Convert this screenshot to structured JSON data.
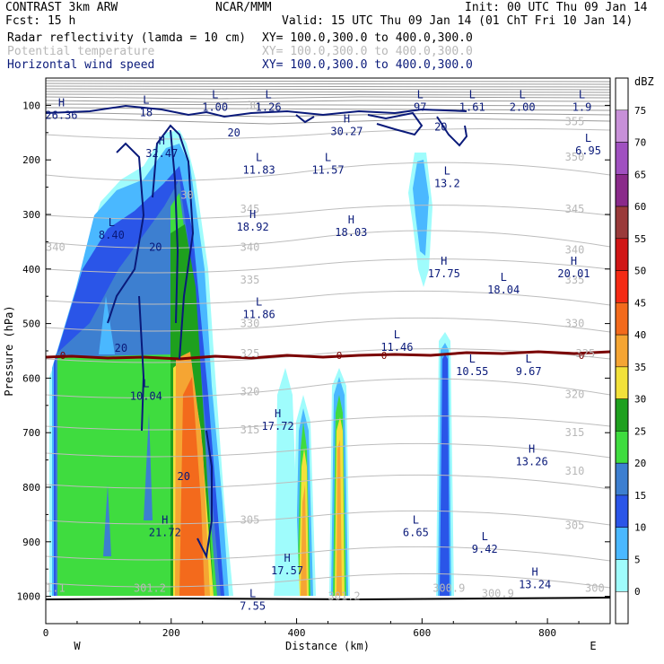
{
  "header": {
    "model": "CONTRAST  3km ARW",
    "org": "NCAR/MMM",
    "init": "Init: 00 UTC Thu 09 Jan 14",
    "fcst": "Fcst:   15 h",
    "valid": "Valid: 15 UTC Thu 09 Jan 14 (01 ChT Fri 10 Jan 14)",
    "fields": [
      {
        "label": "Radar reflectivity (lamda = 10 cm)",
        "xy": "XY= 100.0,300.0 to 400.0,300.0",
        "color": "#000000"
      },
      {
        "label": "Potential temperature",
        "xy": "XY= 100.0,300.0 to 400.0,300.0",
        "color": "#c0c0c0"
      },
      {
        "label": "Horizontal wind speed",
        "xy": "XY= 100.0,300.0 to 400.0,300.0",
        "color": "#0a1a7a"
      }
    ]
  },
  "chart_data": {
    "type": "heatmap",
    "title": "Radar reflectivity (lamda = 10 cm)",
    "xlabel": "Distance (km)",
    "ylabel": "Pressure (hPa)",
    "xlim": [
      0,
      900
    ],
    "ylim": [
      1050,
      50
    ],
    "x_ticks": [
      0,
      200,
      400,
      600,
      800
    ],
    "y_ticks": [
      100,
      200,
      300,
      400,
      500,
      600,
      700,
      800,
      900,
      1000
    ],
    "x_end_labels": {
      "left": "W",
      "right": "E"
    },
    "colorbar": {
      "unit": "dBZ",
      "levels": [
        0,
        5,
        10,
        15,
        20,
        25,
        30,
        35,
        40,
        45,
        50,
        55,
        60,
        65,
        70,
        75
      ],
      "colors": [
        "#ffffff",
        "#9ffcfc",
        "#4ab8ff",
        "#2a55e8",
        "#3d7fd0",
        "#3fdc3f",
        "#1ea01e",
        "#f2e13a",
        "#f5a533",
        "#f36a1c",
        "#f42a14",
        "#d01515",
        "#9a3a3a",
        "#8a2a8a",
        "#a050c0",
        "#c890d8"
      ]
    },
    "freezing_level": {
      "label": "0",
      "color": "#7a0000"
    },
    "theta_labels": [
      {
        "value": "355",
        "x": 828,
        "p": 130
      },
      {
        "value": "350",
        "x": 828,
        "p": 195
      },
      {
        "value": "345",
        "x": 310,
        "p": 290
      },
      {
        "value": "345",
        "x": 828,
        "p": 290
      },
      {
        "value": "340",
        "x": 0,
        "p": 360
      },
      {
        "value": "340",
        "x": 310,
        "p": 360
      },
      {
        "value": "340",
        "x": 828,
        "p": 365
      },
      {
        "value": "335",
        "x": 310,
        "p": 420
      },
      {
        "value": "335",
        "x": 828,
        "p": 420
      },
      {
        "value": "330",
        "x": 310,
        "p": 500
      },
      {
        "value": "330",
        "x": 828,
        "p": 500
      },
      {
        "value": "325",
        "x": 310,
        "p": 555
      },
      {
        "value": "325",
        "x": 845,
        "p": 555
      },
      {
        "value": "320",
        "x": 310,
        "p": 625
      },
      {
        "value": "320",
        "x": 828,
        "p": 630
      },
      {
        "value": "315",
        "x": 310,
        "p": 695
      },
      {
        "value": "315",
        "x": 828,
        "p": 700
      },
      {
        "value": "310",
        "x": 828,
        "p": 770
      },
      {
        "value": "305",
        "x": 310,
        "p": 860
      },
      {
        "value": "305",
        "x": 828,
        "p": 870
      },
      {
        "value": "301.2",
        "x": 140,
        "p": 985
      },
      {
        "value": "301.2",
        "x": 450,
        "p": 1000
      },
      {
        "value": "300.9",
        "x": 617,
        "p": 985
      },
      {
        "value": "300.9",
        "x": 695,
        "p": 995
      },
      {
        "value": "300",
        "x": 860,
        "p": 985
      },
      {
        "value": "1.1",
        "x": 0,
        "p": 985
      },
      {
        "value": "30",
        "x": 320,
        "p": 100
      },
      {
        "value": "30",
        "x": 215,
        "p": 265
      }
    ],
    "wind_contour_labels": [
      {
        "value": "20",
        "x": 300,
        "p": 150
      },
      {
        "value": "20",
        "x": 630,
        "p": 140
      },
      {
        "value": "20",
        "x": 175,
        "p": 360
      },
      {
        "value": "20",
        "x": 120,
        "p": 545
      },
      {
        "value": "20",
        "x": 220,
        "p": 780
      }
    ],
    "extrema": [
      {
        "type": "H",
        "value": "26.36",
        "x": 25,
        "p": 110
      },
      {
        "type": "L",
        "value": "18",
        "x": 160,
        "p": 105
      },
      {
        "type": "L",
        "value": "1.00",
        "x": 270,
        "p": 95
      },
      {
        "type": "L",
        "value": "1.26",
        "x": 355,
        "p": 95
      },
      {
        "type": "L",
        "value": "97",
        "x": 597,
        "p": 95
      },
      {
        "type": "L",
        "value": "1.61",
        "x": 680,
        "p": 95
      },
      {
        "type": "L",
        "value": "2.00",
        "x": 760,
        "p": 95
      },
      {
        "type": "L",
        "value": "1.9",
        "x": 855,
        "p": 95
      },
      {
        "type": "H",
        "value": "30.27",
        "x": 480,
        "p": 140
      },
      {
        "type": "H",
        "value": "32.47",
        "x": 185,
        "p": 180
      },
      {
        "type": "L",
        "value": "6.95",
        "x": 865,
        "p": 175
      },
      {
        "type": "L",
        "value": "11.83",
        "x": 340,
        "p": 210
      },
      {
        "type": "L",
        "value": "11.57",
        "x": 450,
        "p": 210
      },
      {
        "type": "L",
        "value": "13.2",
        "x": 640,
        "p": 235
      },
      {
        "type": "H",
        "value": "18.92",
        "x": 330,
        "p": 315
      },
      {
        "type": "H",
        "value": "18.03",
        "x": 487,
        "p": 325
      },
      {
        "type": "L",
        "value": "8.40",
        "x": 105,
        "p": 330
      },
      {
        "type": "H",
        "value": "17.75",
        "x": 635,
        "p": 400
      },
      {
        "type": "H",
        "value": "20.01",
        "x": 842,
        "p": 400
      },
      {
        "type": "L",
        "value": "18.04",
        "x": 730,
        "p": 430
      },
      {
        "type": "L",
        "value": "11.86",
        "x": 340,
        "p": 475
      },
      {
        "type": "L",
        "value": "11.46",
        "x": 560,
        "p": 535
      },
      {
        "type": "L",
        "value": "10.55",
        "x": 680,
        "p": 580
      },
      {
        "type": "L",
        "value": "9.67",
        "x": 770,
        "p": 580
      },
      {
        "type": "L",
        "value": "10.04",
        "x": 160,
        "p": 625
      },
      {
        "type": "H",
        "value": "17.72",
        "x": 370,
        "p": 680
      },
      {
        "type": "H",
        "value": "13.26",
        "x": 775,
        "p": 745
      },
      {
        "type": "H",
        "value": "21.72",
        "x": 190,
        "p": 875
      },
      {
        "type": "L",
        "value": "6.65",
        "x": 590,
        "p": 875
      },
      {
        "type": "L",
        "value": "9.42",
        "x": 700,
        "p": 905
      },
      {
        "type": "H",
        "value": "17.57",
        "x": 385,
        "p": 945
      },
      {
        "type": "H",
        "value": "13.24",
        "x": 780,
        "p": 970
      },
      {
        "type": "L",
        "value": "7.55",
        "x": 330,
        "p": 1010
      }
    ]
  }
}
